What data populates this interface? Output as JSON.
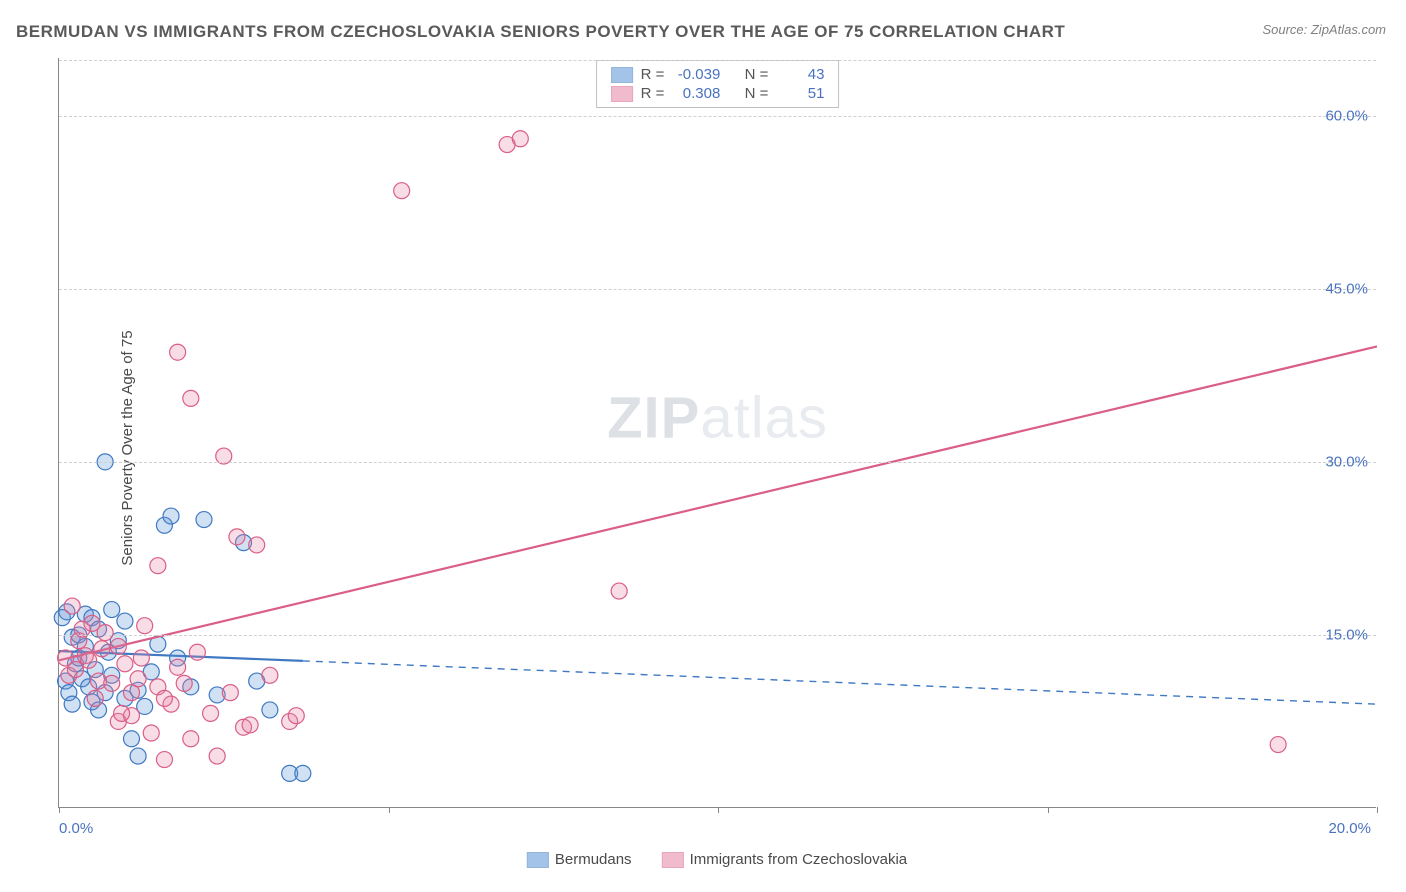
{
  "title": "BERMUDAN VS IMMIGRANTS FROM CZECHOSLOVAKIA SENIORS POVERTY OVER THE AGE OF 75 CORRELATION CHART",
  "source": "Source: ZipAtlas.com",
  "y_axis_label": "Seniors Poverty Over the Age of 75",
  "watermark_bold": "ZIP",
  "watermark_light": "atlas",
  "chart": {
    "type": "scatter",
    "xlim": [
      0,
      20
    ],
    "ylim": [
      0,
      65
    ],
    "x_ticks": [
      0,
      5,
      10,
      15,
      20
    ],
    "x_tick_labels": [
      "0.0%",
      "",
      "",
      "",
      "20.0%"
    ],
    "y_ticks": [
      15,
      30,
      45,
      60
    ],
    "y_tick_labels": [
      "15.0%",
      "30.0%",
      "45.0%",
      "60.0%"
    ],
    "grid_color": "#d0d0d0",
    "axis_color": "#888888",
    "background_color": "#ffffff",
    "marker_radius": 8,
    "marker_stroke_width": 1.2,
    "marker_fill_opacity": 0.28,
    "trend_line_width": 2.2
  },
  "series": [
    {
      "name": "Bermudans",
      "color": "#5b93d6",
      "stroke": "#3f79c2",
      "R": "-0.039",
      "N": "43",
      "trend": {
        "x1": 0,
        "y1": 13.6,
        "x2": 20,
        "y2": 9.0,
        "solid_until_x": 3.7
      },
      "points": [
        [
          0.05,
          16.5
        ],
        [
          0.1,
          11.0
        ],
        [
          0.12,
          17.0
        ],
        [
          0.15,
          10.0
        ],
        [
          0.2,
          14.8
        ],
        [
          0.2,
          9.0
        ],
        [
          0.25,
          12.5
        ],
        [
          0.3,
          15.0
        ],
        [
          0.3,
          13.0
        ],
        [
          0.35,
          11.2
        ],
        [
          0.4,
          16.8
        ],
        [
          0.4,
          14.0
        ],
        [
          0.45,
          10.5
        ],
        [
          0.5,
          9.2
        ],
        [
          0.5,
          16.5
        ],
        [
          0.55,
          12.0
        ],
        [
          0.6,
          8.5
        ],
        [
          0.6,
          15.5
        ],
        [
          0.7,
          30.0
        ],
        [
          0.7,
          10.0
        ],
        [
          0.75,
          13.5
        ],
        [
          0.8,
          17.2
        ],
        [
          0.8,
          11.5
        ],
        [
          0.9,
          14.5
        ],
        [
          1.0,
          9.5
        ],
        [
          1.0,
          16.2
        ],
        [
          1.1,
          6.0
        ],
        [
          1.2,
          10.2
        ],
        [
          1.2,
          4.5
        ],
        [
          1.3,
          8.8
        ],
        [
          1.4,
          11.8
        ],
        [
          1.5,
          14.2
        ],
        [
          1.6,
          24.5
        ],
        [
          1.7,
          25.3
        ],
        [
          1.8,
          13.0
        ],
        [
          2.0,
          10.5
        ],
        [
          2.2,
          25.0
        ],
        [
          2.4,
          9.8
        ],
        [
          2.8,
          23.0
        ],
        [
          3.0,
          11.0
        ],
        [
          3.2,
          8.5
        ],
        [
          3.5,
          3.0
        ],
        [
          3.7,
          3.0
        ]
      ]
    },
    {
      "name": "Immigrants from Czechoslovakia",
      "color": "#e585a5",
      "stroke": "#da5e87",
      "R": "0.308",
      "N": "51",
      "trend": {
        "x1": 0,
        "y1": 12.8,
        "x2": 20,
        "y2": 40.0,
        "solid_until_x": 20
      },
      "points": [
        [
          0.1,
          13.0
        ],
        [
          0.15,
          11.5
        ],
        [
          0.2,
          17.5
        ],
        [
          0.25,
          12.0
        ],
        [
          0.3,
          14.5
        ],
        [
          0.35,
          15.5
        ],
        [
          0.4,
          13.2
        ],
        [
          0.45,
          12.8
        ],
        [
          0.5,
          16.0
        ],
        [
          0.55,
          9.5
        ],
        [
          0.6,
          11.0
        ],
        [
          0.65,
          13.8
        ],
        [
          0.7,
          15.2
        ],
        [
          0.8,
          10.8
        ],
        [
          0.9,
          14.0
        ],
        [
          0.9,
          7.5
        ],
        [
          1.0,
          12.5
        ],
        [
          1.1,
          10.0
        ],
        [
          1.1,
          8.0
        ],
        [
          1.2,
          11.2
        ],
        [
          1.3,
          15.8
        ],
        [
          1.4,
          6.5
        ],
        [
          1.5,
          10.5
        ],
        [
          1.5,
          21.0
        ],
        [
          1.6,
          4.2
        ],
        [
          1.7,
          9.0
        ],
        [
          1.8,
          12.2
        ],
        [
          1.8,
          39.5
        ],
        [
          1.9,
          10.8
        ],
        [
          2.0,
          6.0
        ],
        [
          2.0,
          35.5
        ],
        [
          2.1,
          13.5
        ],
        [
          2.3,
          8.2
        ],
        [
          2.4,
          4.5
        ],
        [
          2.5,
          30.5
        ],
        [
          2.6,
          10.0
        ],
        [
          2.7,
          23.5
        ],
        [
          2.8,
          7.0
        ],
        [
          2.9,
          7.2
        ],
        [
          3.0,
          22.8
        ],
        [
          3.2,
          11.5
        ],
        [
          3.5,
          7.5
        ],
        [
          3.6,
          8.0
        ],
        [
          5.2,
          53.5
        ],
        [
          6.8,
          57.5
        ],
        [
          7.0,
          58.0
        ],
        [
          8.5,
          18.8
        ],
        [
          18.5,
          5.5
        ],
        [
          1.6,
          9.5
        ],
        [
          0.95,
          8.2
        ],
        [
          1.25,
          13.0
        ]
      ]
    }
  ],
  "stats_labels": {
    "R": "R =",
    "N": "N ="
  },
  "legend": [
    {
      "label": "Bermudans",
      "series": 0
    },
    {
      "label": "Immigrants from Czechoslovakia",
      "series": 1
    }
  ]
}
